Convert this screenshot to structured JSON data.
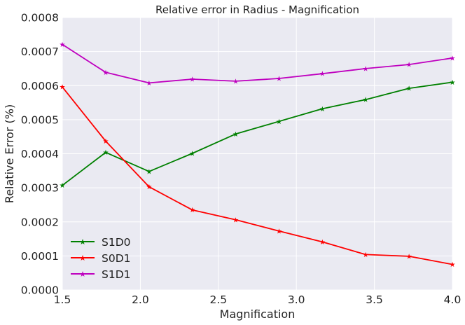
{
  "chart_data": {
    "type": "line",
    "title": "Relative error in Radius - Magnification",
    "xlabel": "Magnification",
    "ylabel": "Relative Error (%)",
    "xlim": [
      1.5,
      4.0
    ],
    "ylim": [
      0.0,
      0.0008
    ],
    "xticks": [
      1.5,
      2.0,
      2.5,
      3.0,
      3.5,
      4.0
    ],
    "xtick_labels": [
      "1.5",
      "2.0",
      "2.5",
      "3.0",
      "3.5",
      "4.0"
    ],
    "yticks": [
      0.0,
      0.0001,
      0.0002,
      0.0003,
      0.0004,
      0.0005,
      0.0006,
      0.0007,
      0.0008
    ],
    "ytick_labels": [
      "0.0000",
      "0.0001",
      "0.0002",
      "0.0003",
      "0.0004",
      "0.0005",
      "0.0006",
      "0.0007",
      "0.0008"
    ],
    "grid": true,
    "legend_position": "lower-left",
    "x": [
      1.5,
      1.778,
      2.056,
      2.333,
      2.611,
      2.889,
      3.167,
      3.444,
      3.722,
      4.0
    ],
    "series": [
      {
        "name": "S1D0",
        "color": "#008000",
        "marker": "star",
        "values": [
          0.000307,
          0.000404,
          0.000348,
          0.000401,
          0.000458,
          0.000495,
          0.000532,
          0.000559,
          0.000592,
          0.00061
        ]
      },
      {
        "name": "S0D1",
        "color": "#ff0000",
        "marker": "star",
        "values": [
          0.000596,
          0.000437,
          0.000303,
          0.000235,
          0.000206,
          0.000173,
          0.000141,
          0.000104,
          9.9e-05,
          7.5e-05
        ]
      },
      {
        "name": "S1D1",
        "color": "#bf00bf",
        "marker": "star",
        "values": [
          0.000721,
          0.000639,
          0.000608,
          0.000619,
          0.000613,
          0.000621,
          0.000635,
          0.00065,
          0.000662,
          0.000681
        ]
      }
    ]
  }
}
